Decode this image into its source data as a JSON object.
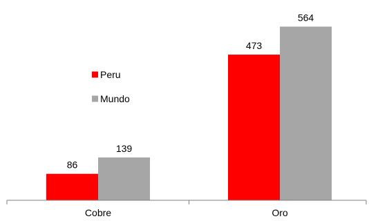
{
  "chart_data": {
    "type": "bar",
    "categories": [
      "Cobre",
      "Oro"
    ],
    "series": [
      {
        "name": "Peru",
        "color": "#ff0000",
        "values": [
          86,
          473
        ]
      },
      {
        "name": "Mundo",
        "color": "#a6a6a6",
        "values": [
          139,
          564
        ]
      }
    ],
    "ylim": [
      0,
      600
    ],
    "grid": false,
    "legend": "center-left",
    "data_labels": true
  }
}
